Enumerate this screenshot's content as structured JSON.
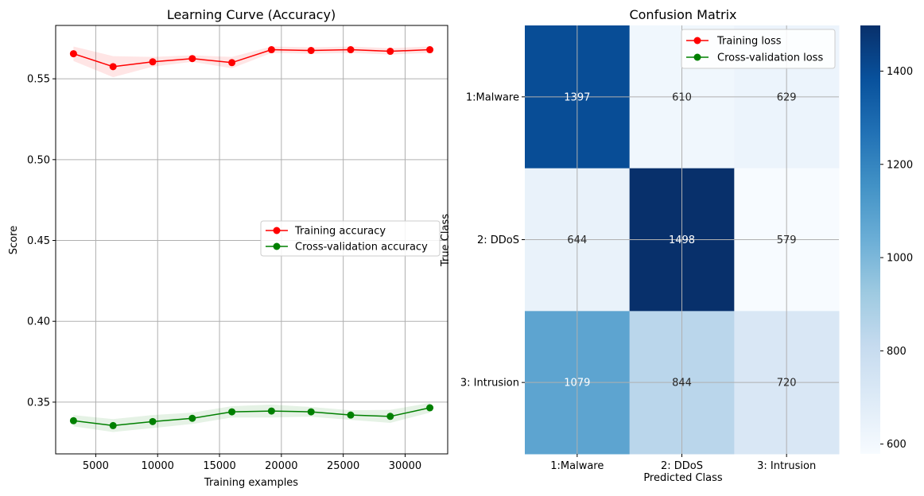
{
  "colors": {
    "train": "#ff0000",
    "cv": "#008000",
    "grid": "#b0b0b0",
    "cmap_low": "#f7fbff",
    "cmap_high": "#08306b"
  },
  "chart_data": [
    {
      "type": "line",
      "title": "Learning Curve (Accuracy)",
      "xlabel": "Training examples",
      "ylabel": "Score",
      "x": [
        3200,
        6400,
        9600,
        12800,
        16000,
        19200,
        22400,
        25600,
        28800,
        32000
      ],
      "xlim": [
        1760,
        33440
      ],
      "ylim": [
        0.318,
        0.583
      ],
      "xticks": [
        5000,
        10000,
        15000,
        20000,
        25000,
        30000
      ],
      "yticks": [
        0.35,
        0.4,
        0.45,
        0.5,
        0.55
      ],
      "ytick_labels": [
        "0.35",
        "0.40",
        "0.45",
        "0.50",
        "0.55"
      ],
      "grid": true,
      "legend_position": "center-right",
      "series": [
        {
          "name": "Training accuracy",
          "color": "#ff0000",
          "values": [
            0.5655,
            0.5575,
            0.5605,
            0.5625,
            0.56,
            0.568,
            0.5675,
            0.568,
            0.567,
            0.568
          ],
          "band": [
            0.0045,
            0.0065,
            0.003,
            0.002,
            0.0035,
            0.002,
            0.002,
            0.002,
            0.002,
            0.002
          ]
        },
        {
          "name": "Cross-validation accuracy",
          "color": "#008000",
          "values": [
            0.3385,
            0.3355,
            0.338,
            0.34,
            0.344,
            0.3445,
            0.344,
            0.342,
            0.3412,
            0.3465
          ],
          "band": [
            0.0035,
            0.004,
            0.004,
            0.0035,
            0.0035,
            0.004,
            0.003,
            0.003,
            0.004,
            0.003
          ]
        }
      ]
    },
    {
      "type": "heatmap",
      "title": "Confusion Matrix",
      "xlabel": "Predicted Class",
      "ylabel": "True Class",
      "x_categories": [
        "1:Malware",
        "2: DDoS",
        "3: Intrusion"
      ],
      "y_categories": [
        "1:Malware",
        "2: DDoS",
        "3: Intrusion"
      ],
      "values": [
        [
          1397,
          610,
          629
        ],
        [
          644,
          1498,
          579
        ],
        [
          1079,
          844,
          720
        ]
      ],
      "colorbar": {
        "range": [
          579,
          1498
        ],
        "ticks": [
          600,
          800,
          1000,
          1200,
          1400
        ],
        "cmap": "Blues"
      },
      "grid": true,
      "legend_position": "top-right",
      "legend": [
        {
          "name": "Training loss",
          "color": "#ff0000"
        },
        {
          "name": "Cross-validation loss",
          "color": "#008000"
        }
      ]
    }
  ]
}
